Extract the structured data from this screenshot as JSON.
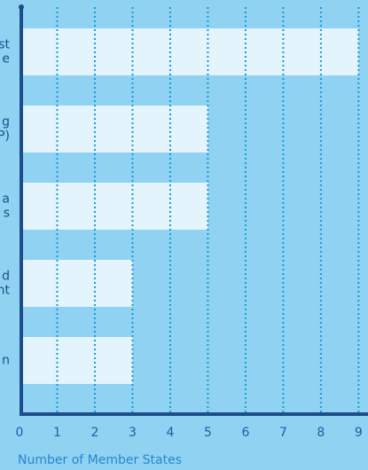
{
  "chart_data": {
    "type": "hbar",
    "categories": [
      [
        "st",
        "e"
      ],
      [
        "g",
        "P)"
      ],
      [
        "a",
        "s"
      ],
      [
        "d",
        "nt"
      ],
      [
        "n"
      ]
    ],
    "values": [
      9,
      5,
      5,
      3,
      3
    ],
    "color": "#e3f4fd",
    "x_label": "Number of Member States",
    "xlim": [
      0,
      9.25
    ],
    "xticks": [
      0,
      1,
      2,
      3,
      4,
      5,
      6,
      7,
      8,
      9
    ],
    "grid": true
  }
}
